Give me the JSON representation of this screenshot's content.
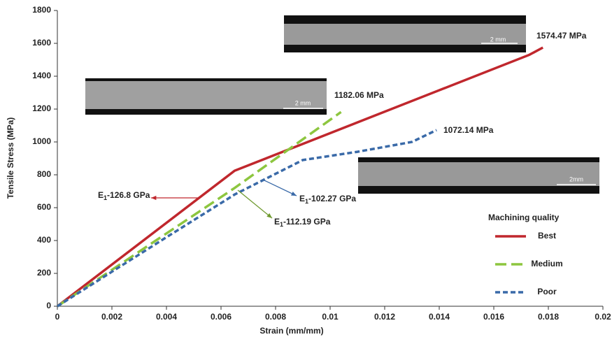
{
  "chart_data": {
    "type": "line",
    "xlabel": "Strain (mm/mm)",
    "ylabel": "Tensile Stress (MPa)",
    "xlim": [
      0,
      0.02
    ],
    "xticks": [
      0,
      0.002,
      0.004,
      0.006,
      0.008,
      0.01,
      0.012,
      0.014,
      0.016,
      0.018,
      0.02
    ],
    "ylim": [
      0,
      1800
    ],
    "yticks": [
      0,
      200,
      400,
      600,
      800,
      1000,
      1200,
      1400,
      1600,
      1800
    ],
    "legend_title": "Machining quality",
    "legend_position": "lower right",
    "series": [
      {
        "name": "Best",
        "color": "#c0272d",
        "dash": "solid",
        "x": [
          0,
          0.0065,
          0.0173,
          0.0178
        ],
        "values": [
          0,
          825,
          1530,
          1574.47
        ]
      },
      {
        "name": "Medium",
        "color": "#8dc63f",
        "dash": "long",
        "x": [
          0,
          0.0065,
          0.0104
        ],
        "values": [
          0,
          720,
          1182.06
        ]
      },
      {
        "name": "Poor",
        "color": "#3a6aa8",
        "dash": "short",
        "x": [
          0,
          0.004,
          0.0065,
          0.009,
          0.011,
          0.013,
          0.0139
        ],
        "values": [
          0,
          420,
          680,
          890,
          940,
          1000,
          1072.14
        ]
      }
    ],
    "annotations": [
      {
        "text": "1574.47 MPa"
      },
      {
        "text": "1182.06 MPa"
      },
      {
        "text": "1072.14 MPa"
      },
      {
        "text": "E",
        "subscript": "1",
        "suffix": "-126.8 GPa",
        "color": "#c0272d"
      },
      {
        "text": "E",
        "subscript": "1",
        "suffix": "-102.27 GPa",
        "color": "#3a6aa8"
      },
      {
        "text": "E",
        "subscript": "1",
        "suffix": "-112.19 GPa",
        "color": "#6f9a2f"
      }
    ],
    "images": [
      {
        "scale": "2 mm"
      },
      {
        "scale": "2 mm"
      },
      {
        "scale": "2mm"
      }
    ]
  }
}
